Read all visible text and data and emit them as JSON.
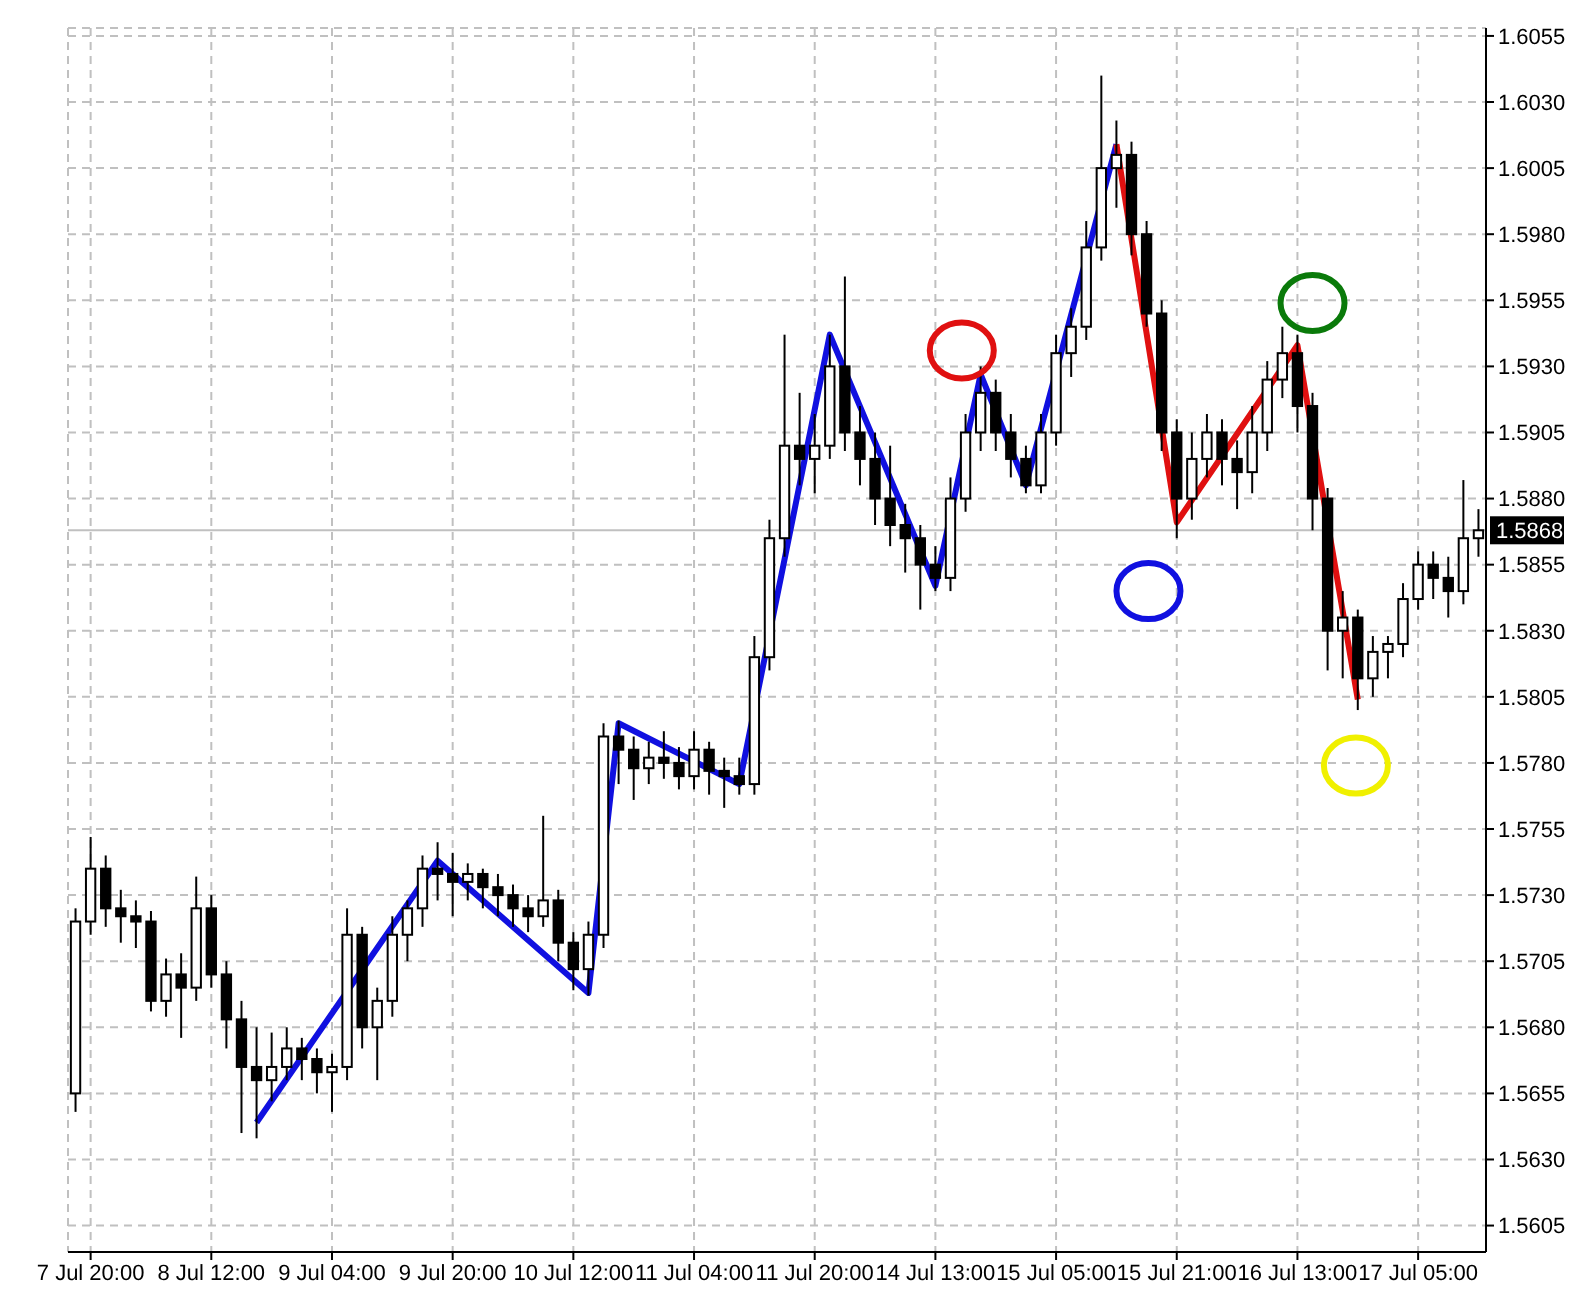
{
  "chart_data": {
    "type": "candlestick",
    "categories": [
      null,
      "7 Jul 20:00",
      null,
      null,
      null,
      null,
      null,
      null,
      null,
      "8 Jul 12:00",
      null,
      null,
      null,
      null,
      null,
      null,
      null,
      "9 Jul 04:00",
      null,
      null,
      null,
      null,
      null,
      null,
      null,
      "9 Jul 20:00",
      null,
      null,
      null,
      null,
      null,
      null,
      null,
      "10 Jul 12:00",
      null,
      null,
      null,
      null,
      null,
      null,
      null,
      "11 Jul 04:00",
      null,
      null,
      null,
      null,
      null,
      null,
      null,
      "11 Jul 20:00",
      null,
      null,
      null,
      null,
      null,
      null,
      null,
      "14 Jul 13:00",
      null,
      null,
      null,
      null,
      null,
      null,
      null,
      "15 Jul 05:00",
      null,
      null,
      null,
      null,
      null,
      null,
      null,
      "15 Jul 21:00",
      null,
      null,
      null,
      null,
      null,
      null,
      null,
      "16 Jul 13:00",
      null,
      null,
      null,
      null,
      null,
      null,
      null,
      "17 Jul 05:00",
      null,
      null,
      null,
      null
    ],
    "ohlc": [
      [
        1.5655,
        1.5725,
        1.5648,
        1.572
      ],
      [
        1.572,
        1.5752,
        1.5715,
        1.574
      ],
      [
        1.574,
        1.5745,
        1.5718,
        1.5725
      ],
      [
        1.5725,
        1.5732,
        1.5712,
        1.5722
      ],
      [
        1.5722,
        1.5728,
        1.571,
        1.572
      ],
      [
        1.572,
        1.5724,
        1.5686,
        1.569
      ],
      [
        1.569,
        1.5706,
        1.5684,
        1.57
      ],
      [
        1.57,
        1.5708,
        1.5676,
        1.5695
      ],
      [
        1.5695,
        1.5737,
        1.569,
        1.5725
      ],
      [
        1.5725,
        1.573,
        1.5695,
        1.57
      ],
      [
        1.57,
        1.5705,
        1.5672,
        1.5683
      ],
      [
        1.5683,
        1.569,
        1.564,
        1.5665
      ],
      [
        1.5665,
        1.568,
        1.5638,
        1.566
      ],
      [
        1.566,
        1.5678,
        1.5652,
        1.5665
      ],
      [
        1.5665,
        1.568,
        1.566,
        1.5672
      ],
      [
        1.5672,
        1.5676,
        1.566,
        1.5668
      ],
      [
        1.5668,
        1.5672,
        1.5655,
        1.5663
      ],
      [
        1.5663,
        1.567,
        1.5648,
        1.5665
      ],
      [
        1.5665,
        1.5725,
        1.566,
        1.5715
      ],
      [
        1.5715,
        1.5718,
        1.5672,
        1.568
      ],
      [
        1.568,
        1.5695,
        1.566,
        1.569
      ],
      [
        1.569,
        1.5722,
        1.5684,
        1.5715
      ],
      [
        1.5715,
        1.5728,
        1.5705,
        1.5725
      ],
      [
        1.5725,
        1.5745,
        1.5718,
        1.574
      ],
      [
        1.574,
        1.575,
        1.5728,
        1.5738
      ],
      [
        1.5738,
        1.5746,
        1.5722,
        1.5735
      ],
      [
        1.5735,
        1.5742,
        1.5728,
        1.5738
      ],
      [
        1.5738,
        1.574,
        1.5725,
        1.5733
      ],
      [
        1.5733,
        1.5738,
        1.5722,
        1.573
      ],
      [
        1.573,
        1.5734,
        1.5718,
        1.5725
      ],
      [
        1.5725,
        1.573,
        1.5716,
        1.5722
      ],
      [
        1.5722,
        1.576,
        1.5718,
        1.5728
      ],
      [
        1.5728,
        1.5732,
        1.5705,
        1.5712
      ],
      [
        1.5712,
        1.5716,
        1.5694,
        1.5702
      ],
      [
        1.5702,
        1.572,
        1.5692,
        1.5715
      ],
      [
        1.5715,
        1.5795,
        1.571,
        1.579
      ],
      [
        1.579,
        1.5796,
        1.5772,
        1.5785
      ],
      [
        1.5785,
        1.579,
        1.5766,
        1.5778
      ],
      [
        1.5778,
        1.5788,
        1.5772,
        1.5782
      ],
      [
        1.5782,
        1.5792,
        1.5774,
        1.578
      ],
      [
        1.578,
        1.5786,
        1.577,
        1.5775
      ],
      [
        1.5775,
        1.5792,
        1.577,
        1.5785
      ],
      [
        1.5785,
        1.5788,
        1.5768,
        1.5777
      ],
      [
        1.5777,
        1.5782,
        1.5763,
        1.5775
      ],
      [
        1.5775,
        1.5782,
        1.5768,
        1.5772
      ],
      [
        1.5772,
        1.5828,
        1.5768,
        1.582
      ],
      [
        1.582,
        1.5872,
        1.5815,
        1.5865
      ],
      [
        1.5865,
        1.5942,
        1.5858,
        1.59
      ],
      [
        1.59,
        1.592,
        1.5885,
        1.5895
      ],
      [
        1.5895,
        1.5912,
        1.5882,
        1.59
      ],
      [
        1.59,
        1.5942,
        1.5895,
        1.593
      ],
      [
        1.593,
        1.5964,
        1.5898,
        1.5905
      ],
      [
        1.5905,
        1.5915,
        1.5885,
        1.5895
      ],
      [
        1.5895,
        1.5905,
        1.587,
        1.588
      ],
      [
        1.588,
        1.59,
        1.5862,
        1.587
      ],
      [
        1.587,
        1.5878,
        1.5852,
        1.5865
      ],
      [
        1.5865,
        1.587,
        1.5838,
        1.5855
      ],
      [
        1.5855,
        1.5862,
        1.5845,
        1.585
      ],
      [
        1.585,
        1.5888,
        1.5845,
        1.588
      ],
      [
        1.588,
        1.5912,
        1.5875,
        1.5905
      ],
      [
        1.5905,
        1.593,
        1.5898,
        1.592
      ],
      [
        1.592,
        1.5925,
        1.5898,
        1.5905
      ],
      [
        1.5905,
        1.5912,
        1.5888,
        1.5895
      ],
      [
        1.5895,
        1.59,
        1.5882,
        1.5885
      ],
      [
        1.5885,
        1.5912,
        1.5882,
        1.5905
      ],
      [
        1.5905,
        1.5942,
        1.59,
        1.5935
      ],
      [
        1.5935,
        1.5952,
        1.5926,
        1.5945
      ],
      [
        1.5945,
        1.5985,
        1.594,
        1.5975
      ],
      [
        1.5975,
        1.604,
        1.597,
        1.6005
      ],
      [
        1.6005,
        1.6023,
        1.599,
        1.601
      ],
      [
        1.601,
        1.6015,
        1.5972,
        1.598
      ],
      [
        1.598,
        1.5985,
        1.5945,
        1.595
      ],
      [
        1.595,
        1.5955,
        1.5898,
        1.5905
      ],
      [
        1.5905,
        1.591,
        1.5865,
        1.588
      ],
      [
        1.588,
        1.5905,
        1.5872,
        1.5895
      ],
      [
        1.5895,
        1.5912,
        1.5888,
        1.5905
      ],
      [
        1.5905,
        1.591,
        1.5885,
        1.5895
      ],
      [
        1.5895,
        1.5902,
        1.5876,
        1.589
      ],
      [
        1.589,
        1.5915,
        1.5882,
        1.5905
      ],
      [
        1.5905,
        1.5932,
        1.5898,
        1.5925
      ],
      [
        1.5925,
        1.5945,
        1.5918,
        1.5935
      ],
      [
        1.5935,
        1.5942,
        1.5905,
        1.5915
      ],
      [
        1.5915,
        1.592,
        1.5868,
        1.588
      ],
      [
        1.588,
        1.5884,
        1.5815,
        1.583
      ],
      [
        1.583,
        1.5845,
        1.5812,
        1.5835
      ],
      [
        1.5835,
        1.5838,
        1.58,
        1.5812
      ],
      [
        1.5812,
        1.5828,
        1.5805,
        1.5822
      ],
      [
        1.5822,
        1.5828,
        1.5812,
        1.5825
      ],
      [
        1.5825,
        1.5848,
        1.582,
        1.5842
      ],
      [
        1.5842,
        1.586,
        1.5838,
        1.5855
      ],
      [
        1.5855,
        1.586,
        1.5842,
        1.585
      ],
      [
        1.585,
        1.5858,
        1.5835,
        1.5845
      ],
      [
        1.5845,
        1.5887,
        1.584,
        1.5865
      ],
      [
        1.5865,
        1.5876,
        1.5858,
        1.5868
      ]
    ],
    "series": [
      {
        "type": "line",
        "color": "#1010e0",
        "values": [
          null,
          null,
          null,
          null,
          null,
          null,
          null,
          null,
          null,
          null,
          null,
          null,
          1.5644,
          null,
          null,
          null,
          null,
          null,
          null,
          null,
          null,
          null,
          null,
          null,
          1.5743,
          null,
          null,
          null,
          null,
          null,
          null,
          null,
          null,
          null,
          1.5693,
          null,
          1.5795,
          null,
          null,
          null,
          null,
          null,
          null,
          null,
          1.5772,
          null,
          null,
          null,
          null,
          null,
          1.5942,
          null,
          null,
          null,
          null,
          null,
          null,
          1.5847,
          null,
          null,
          1.5927,
          null,
          null,
          1.5885,
          null,
          null,
          null,
          null,
          null,
          1.6014,
          null,
          null,
          null,
          null,
          null,
          null,
          null,
          null,
          null,
          null,
          null,
          null,
          null,
          null,
          null,
          null,
          null,
          null,
          null,
          null,
          null,
          null,
          null,
          null
        ]
      },
      {
        "type": "line",
        "color": "#e01010",
        "values": [
          null,
          null,
          null,
          null,
          null,
          null,
          null,
          null,
          null,
          null,
          null,
          null,
          null,
          null,
          null,
          null,
          null,
          null,
          null,
          null,
          null,
          null,
          null,
          null,
          null,
          null,
          null,
          null,
          null,
          null,
          null,
          null,
          null,
          null,
          null,
          null,
          null,
          null,
          null,
          null,
          null,
          null,
          null,
          null,
          null,
          null,
          null,
          null,
          null,
          null,
          null,
          null,
          null,
          null,
          null,
          null,
          null,
          null,
          null,
          null,
          null,
          null,
          null,
          null,
          null,
          null,
          null,
          null,
          null,
          1.6014,
          null,
          null,
          null,
          1.5871,
          null,
          null,
          null,
          null,
          null,
          null,
          null,
          1.5938,
          null,
          null,
          null,
          1.5804,
          null,
          null,
          null,
          null,
          null,
          null,
          null,
          null
        ]
      }
    ],
    "ylim": [
      1.5595,
      1.6058
    ],
    "yticks": [
      1.5605,
      {
        "value": 1.563,
        "label": "1.5630"
      },
      1.5655,
      {
        "value": 1.568,
        "label": "1.5680"
      },
      1.5705,
      {
        "value": 1.573,
        "label": "1.5730"
      },
      1.5755,
      {
        "value": 1.578,
        "label": "1.5780"
      },
      1.5805,
      {
        "value": 1.583,
        "label": "1.5830"
      },
      1.5855,
      {
        "value": 1.588,
        "label": "1.5880"
      },
      1.5905,
      {
        "value": 1.593,
        "label": "1.5930"
      },
      1.5955,
      {
        "value": 1.598,
        "label": "1.5980"
      },
      1.6005,
      {
        "value": 1.603,
        "label": "1.6030"
      },
      1.6055
    ],
    "ref_lines": [
      {
        "axis": "y",
        "value": 1.5868,
        "label": "1.5868",
        "color": "#c0c0c0"
      }
    ],
    "grid": true,
    "marker": "none"
  }
}
